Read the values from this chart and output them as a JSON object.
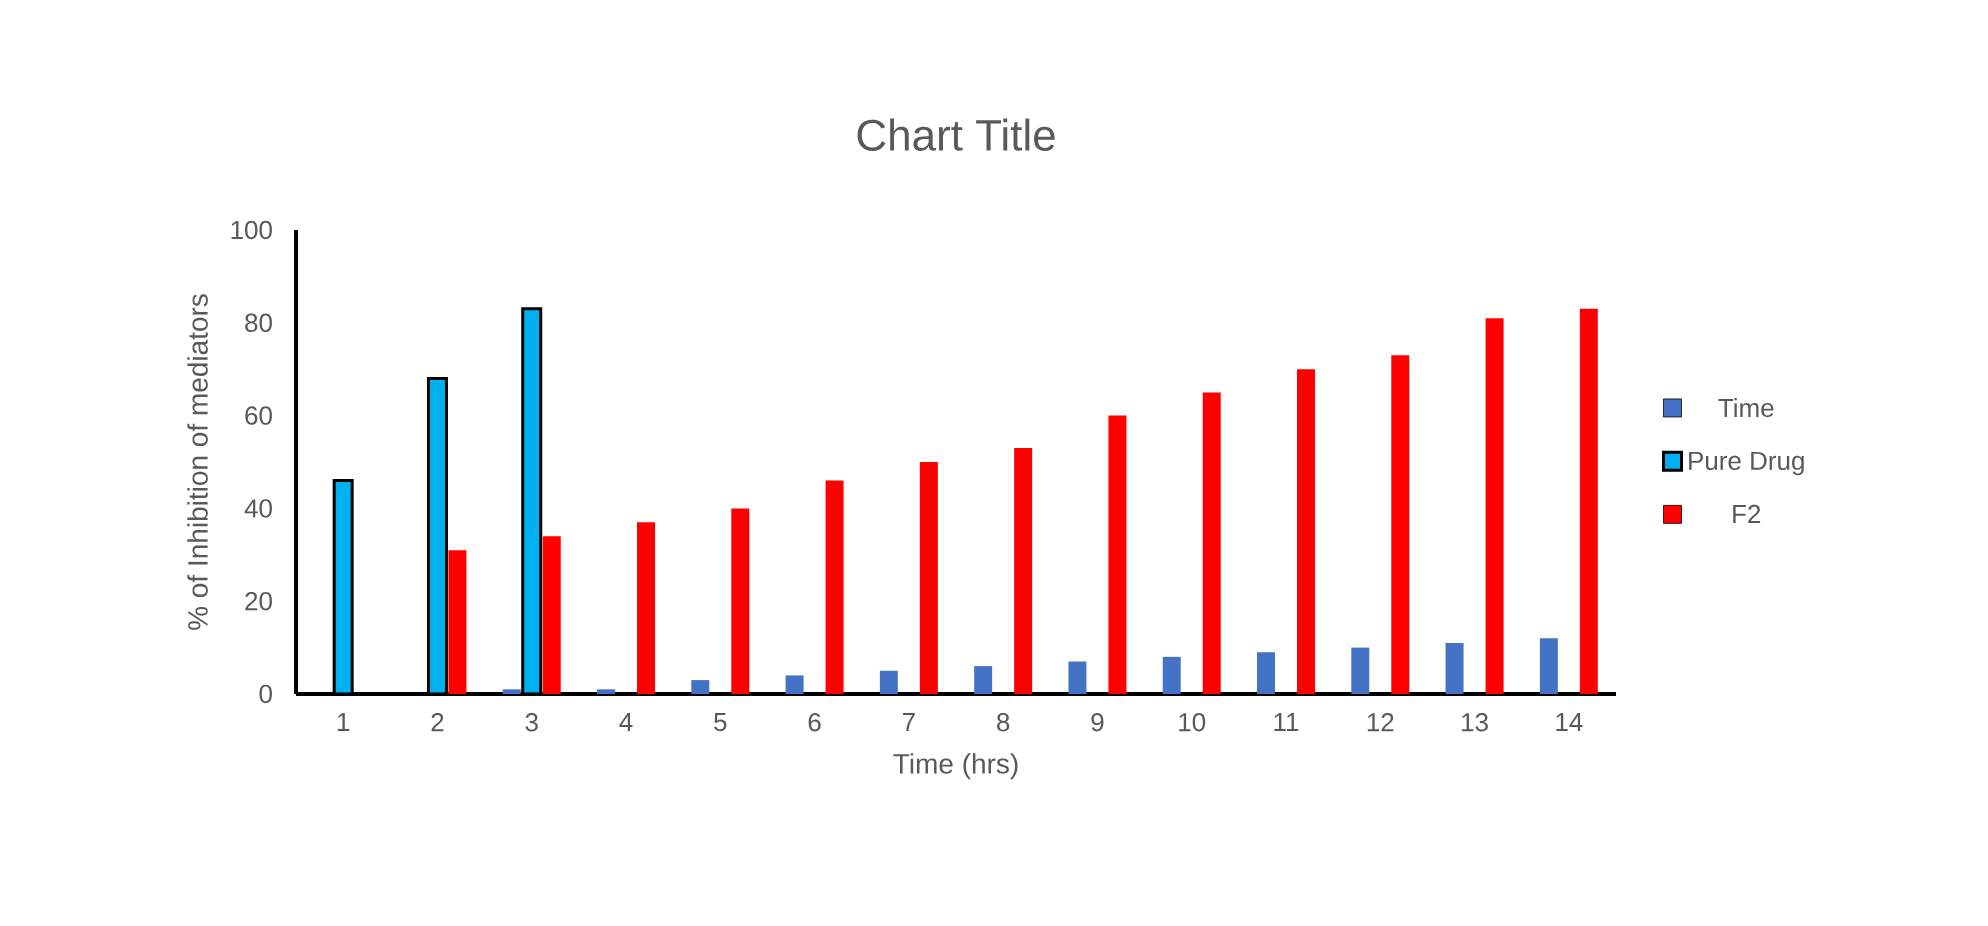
{
  "chart_data": {
    "type": "bar",
    "title": "Chart Title",
    "xlabel": "Time (hrs)",
    "ylabel": "% of Inhibition of mediators",
    "categories": [
      "1",
      "2",
      "3",
      "4",
      "5",
      "6",
      "7",
      "8",
      "9",
      "10",
      "11",
      "12",
      "13",
      "14"
    ],
    "series": [
      {
        "name": "Time",
        "color": "#4472c4",
        "values": [
          0,
          0,
          1,
          1,
          3,
          4,
          5,
          6,
          7,
          8,
          9,
          10,
          11,
          12
        ]
      },
      {
        "name": "Pure Drug",
        "color": "#00b0f0",
        "values": [
          46,
          68,
          83,
          null,
          null,
          null,
          null,
          null,
          null,
          null,
          null,
          null,
          null,
          null
        ]
      },
      {
        "name": "F2",
        "color": "#ff0000",
        "values": [
          null,
          31,
          34,
          37,
          40,
          46,
          50,
          53,
          60,
          65,
          70,
          73,
          81,
          83
        ]
      }
    ],
    "ylim": [
      0,
      100
    ],
    "yticks": [
      0,
      20,
      40,
      60,
      80,
      100
    ],
    "grid": false,
    "legend": "right"
  }
}
